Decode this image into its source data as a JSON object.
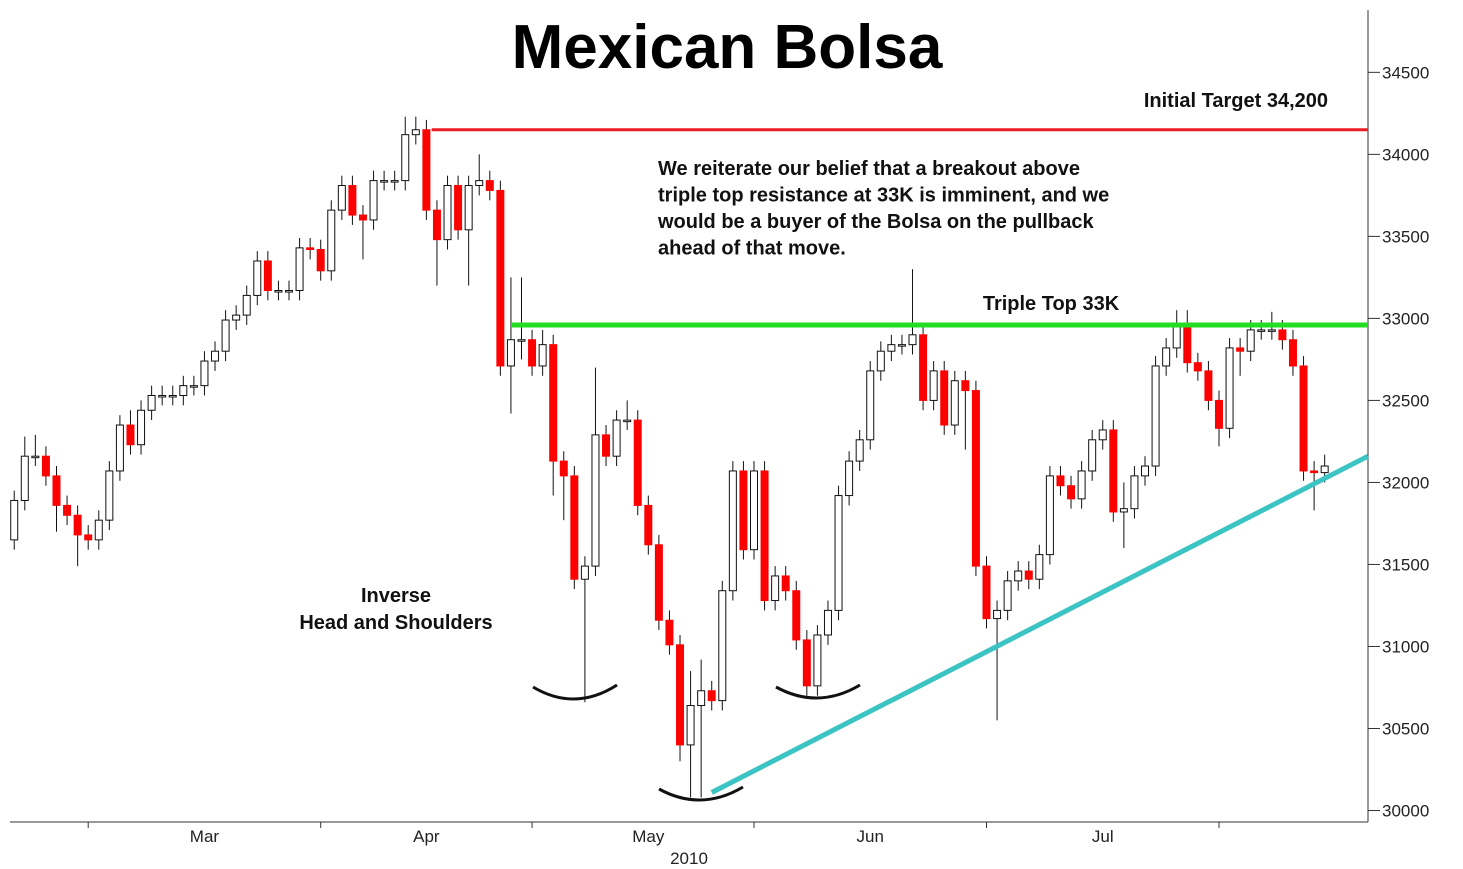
{
  "chart_data": {
    "type": "candlestick",
    "title": "Mexican Bolsa",
    "xlabel": "2010",
    "up_color": "#ffffff",
    "down_color": "#ff0000",
    "open": [
      31650,
      31890,
      32160,
      32160,
      32040,
      31860,
      31800,
      31680,
      31650,
      31770,
      32070,
      32350,
      32230,
      32440,
      32530,
      32530,
      32530,
      32590,
      32590,
      32740,
      32800,
      32990,
      33020,
      33140,
      33350,
      33170,
      33170,
      33170,
      33430,
      33420,
      33290,
      33660,
      33810,
      33630,
      33600,
      33840,
      33840,
      33840,
      34120,
      34150,
      33660,
      33480,
      33810,
      33540,
      33810,
      33840,
      33780,
      32710,
      32870,
      32870,
      32710,
      32840,
      32130,
      32040,
      31410,
      31490,
      32290,
      32160,
      32380,
      32380,
      31860,
      31620,
      31160,
      31010,
      30400,
      30640,
      30730,
      30670,
      31340,
      32070,
      31590,
      32070,
      31280,
      31430,
      31340,
      31040,
      30760,
      31070,
      31220,
      31920,
      32130,
      32260,
      32680,
      32800,
      32840,
      32840,
      32900,
      32500,
      32680,
      32350,
      32620,
      32560,
      31490,
      31170,
      31220,
      31400,
      31460,
      31410,
      31560,
      32040,
      31980,
      31900,
      32070,
      32260,
      32320,
      31820,
      31840,
      32040,
      32100,
      32710,
      32820,
      32960,
      32730,
      32680,
      32500,
      32330,
      32820,
      32800,
      32930,
      32930,
      32930,
      32870,
      32710,
      32070,
      32060
    ],
    "high": [
      31950,
      32280,
      32290,
      32220,
      32100,
      31920,
      31860,
      31740,
      31830,
      32130,
      32410,
      32440,
      32500,
      32590,
      32590,
      32590,
      32650,
      32650,
      32800,
      32860,
      33050,
      33080,
      33200,
      33410,
      33410,
      33230,
      33230,
      33490,
      33490,
      33480,
      33720,
      33870,
      33870,
      33690,
      33900,
      33900,
      33900,
      34230,
      34230,
      34210,
      33720,
      33870,
      33870,
      33870,
      34000,
      33900,
      33840,
      33250,
      33250,
      32930,
      32930,
      32900,
      32190,
      32100,
      31550,
      32700,
      32350,
      32440,
      32500,
      32440,
      31920,
      31680,
      31220,
      31070,
      30850,
      30920,
      30790,
      31400,
      32130,
      32130,
      32130,
      32130,
      31490,
      31490,
      31400,
      31100,
      31130,
      31280,
      31980,
      32190,
      32320,
      32740,
      32860,
      32900,
      32900,
      33300,
      32960,
      32740,
      32740,
      32680,
      32680,
      32620,
      31550,
      31280,
      31460,
      31520,
      31520,
      31620,
      32100,
      32100,
      32040,
      32130,
      32320,
      32380,
      32380,
      32000,
      32100,
      32160,
      32770,
      32880,
      33050,
      33050,
      32790,
      32740,
      32560,
      32880,
      32880,
      32990,
      32990,
      33040,
      32990,
      32930,
      32770,
      32130,
      32170
    ],
    "low": [
      31590,
      31830,
      32100,
      31980,
      31700,
      31740,
      31490,
      31590,
      31590,
      31710,
      32010,
      32170,
      32170,
      32380,
      32470,
      32470,
      32470,
      32530,
      32530,
      32680,
      32740,
      32930,
      32960,
      33080,
      33110,
      33110,
      33110,
      33110,
      33360,
      33230,
      33230,
      33600,
      33570,
      33360,
      33540,
      33780,
      33780,
      33780,
      34060,
      33600,
      33200,
      33420,
      33480,
      33200,
      33750,
      33720,
      32650,
      32420,
      32750,
      32650,
      32650,
      31920,
      31770,
      31350,
      30660,
      31430,
      32100,
      32100,
      32320,
      31800,
      31560,
      31100,
      30950,
      30300,
      30080,
      30080,
      30610,
      30610,
      31280,
      31530,
      31530,
      31220,
      31220,
      31280,
      30980,
      30700,
      30700,
      31010,
      31160,
      31860,
      32070,
      32200,
      32620,
      32740,
      32780,
      32780,
      32440,
      32440,
      32290,
      32290,
      32200,
      31430,
      31110,
      30550,
      31160,
      31340,
      31350,
      31350,
      31500,
      31920,
      31840,
      31840,
      32010,
      32200,
      31760,
      31600,
      31780,
      31980,
      32040,
      32650,
      32760,
      32670,
      32620,
      32440,
      32220,
      32270,
      32650,
      32740,
      32870,
      32870,
      32810,
      32650,
      32010,
      31830,
      32000
    ],
    "close": [
      31890,
      32160,
      32160,
      32040,
      31860,
      31800,
      31680,
      31650,
      31770,
      32070,
      32350,
      32230,
      32440,
      32530,
      32530,
      32530,
      32590,
      32590,
      32740,
      32800,
      32990,
      33020,
      33140,
      33350,
      33170,
      33170,
      33170,
      33430,
      33420,
      33290,
      33660,
      33810,
      33630,
      33600,
      33840,
      33840,
      33840,
      34120,
      34150,
      33660,
      33480,
      33810,
      33540,
      33810,
      33840,
      33780,
      32710,
      32870,
      32870,
      32710,
      32840,
      32130,
      32040,
      31410,
      31490,
      32290,
      32160,
      32380,
      32380,
      31860,
      31620,
      31160,
      31010,
      30400,
      30640,
      30730,
      30670,
      31340,
      32070,
      31590,
      32070,
      31280,
      31430,
      31340,
      31040,
      30760,
      31070,
      31220,
      31920,
      32130,
      32260,
      32680,
      32800,
      32840,
      32840,
      32900,
      32500,
      32680,
      32350,
      32620,
      32560,
      31490,
      31170,
      31220,
      31400,
      31460,
      31410,
      31560,
      32040,
      31980,
      31900,
      32070,
      32260,
      32320,
      31820,
      31840,
      32040,
      32100,
      32710,
      32820,
      32960,
      32730,
      32680,
      32500,
      32330,
      32820,
      32800,
      32930,
      32930,
      32930,
      32870,
      32710,
      32070,
      32060,
      32100
    ],
    "xlim": [
      -0.4,
      128.1
    ],
    "xticks": [
      7,
      29,
      49,
      70,
      92,
      114
    ],
    "month_labels": [
      {
        "value": 18,
        "label": "Mar"
      },
      {
        "value": 39,
        "label": "Apr"
      },
      {
        "value": 60,
        "label": "May"
      },
      {
        "value": 81,
        "label": "Jun"
      },
      {
        "value": 103,
        "label": "Jul"
      }
    ],
    "ylim": [
      29930,
      34880
    ],
    "yticks": [
      30000,
      30500,
      31000,
      31500,
      32000,
      32500,
      33000,
      33500,
      34000,
      34500
    ],
    "levels": [
      {
        "label": "Initial Target 34,200",
        "value": 34150,
        "start": 39.5,
        "color": "#ee1c24"
      },
      {
        "label": "Triple Top 33K",
        "value": 32960,
        "start": 47,
        "color": "#22dd22"
      }
    ],
    "trendline": {
      "x": [
        66,
        128.1
      ],
      "y": [
        30110,
        32160
      ],
      "color": "#3cc3c3"
    },
    "commentary": [
      "We reiterate our belief that a breakout above",
      "triple top resistance at 33K is imminent, and we",
      "would be a buyer of the Bolsa on the pullback",
      "ahead of that move."
    ],
    "pattern_label": [
      "Inverse",
      "Head and Shoulders"
    ]
  }
}
